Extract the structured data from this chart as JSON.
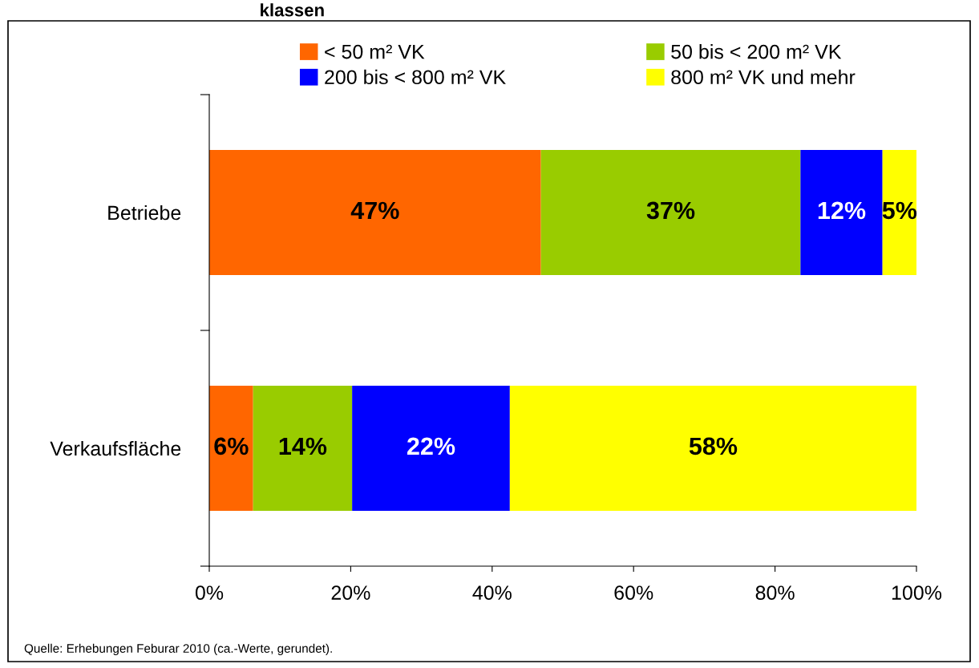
{
  "chart_data": {
    "type": "bar",
    "orientation": "horizontal",
    "stacked": true,
    "title": "klassen",
    "categories": [
      "Betriebe",
      "Verkaufsfläche"
    ],
    "series": [
      {
        "name": "< 50 m² VK",
        "color": "#ff6600",
        "values": [
          46.9,
          6.2
        ],
        "value_labels": [
          "47%",
          "6%"
        ]
      },
      {
        "name": "50 bis < 200 m² VK",
        "color": "#99cc00",
        "values": [
          36.7,
          14.0
        ],
        "value_labels": [
          "37%",
          "14%"
        ]
      },
      {
        "name": "200 bis < 800 m² VK",
        "color": "#0000ff",
        "values": [
          11.6,
          22.3
        ],
        "value_labels": [
          "12%",
          "22%"
        ]
      },
      {
        "name": "800 m² VK und mehr",
        "color": "#ffff00",
        "values": [
          4.8,
          57.5
        ],
        "value_labels": [
          "5%",
          "58%"
        ]
      }
    ],
    "xlim": [
      0,
      100
    ],
    "xticks": [
      {
        "value": 0,
        "label": "0%"
      },
      {
        "value": 20,
        "label": "20%"
      },
      {
        "value": 40,
        "label": "40%"
      },
      {
        "value": 60,
        "label": "60%"
      },
      {
        "value": 80,
        "label": "80%"
      },
      {
        "value": 100,
        "label": "100%"
      }
    ],
    "grid": false,
    "legend": "top",
    "annotations": [
      "Quelle: Erhebungen Feburar 2010 (ca.-Werte, gerundet)."
    ]
  }
}
